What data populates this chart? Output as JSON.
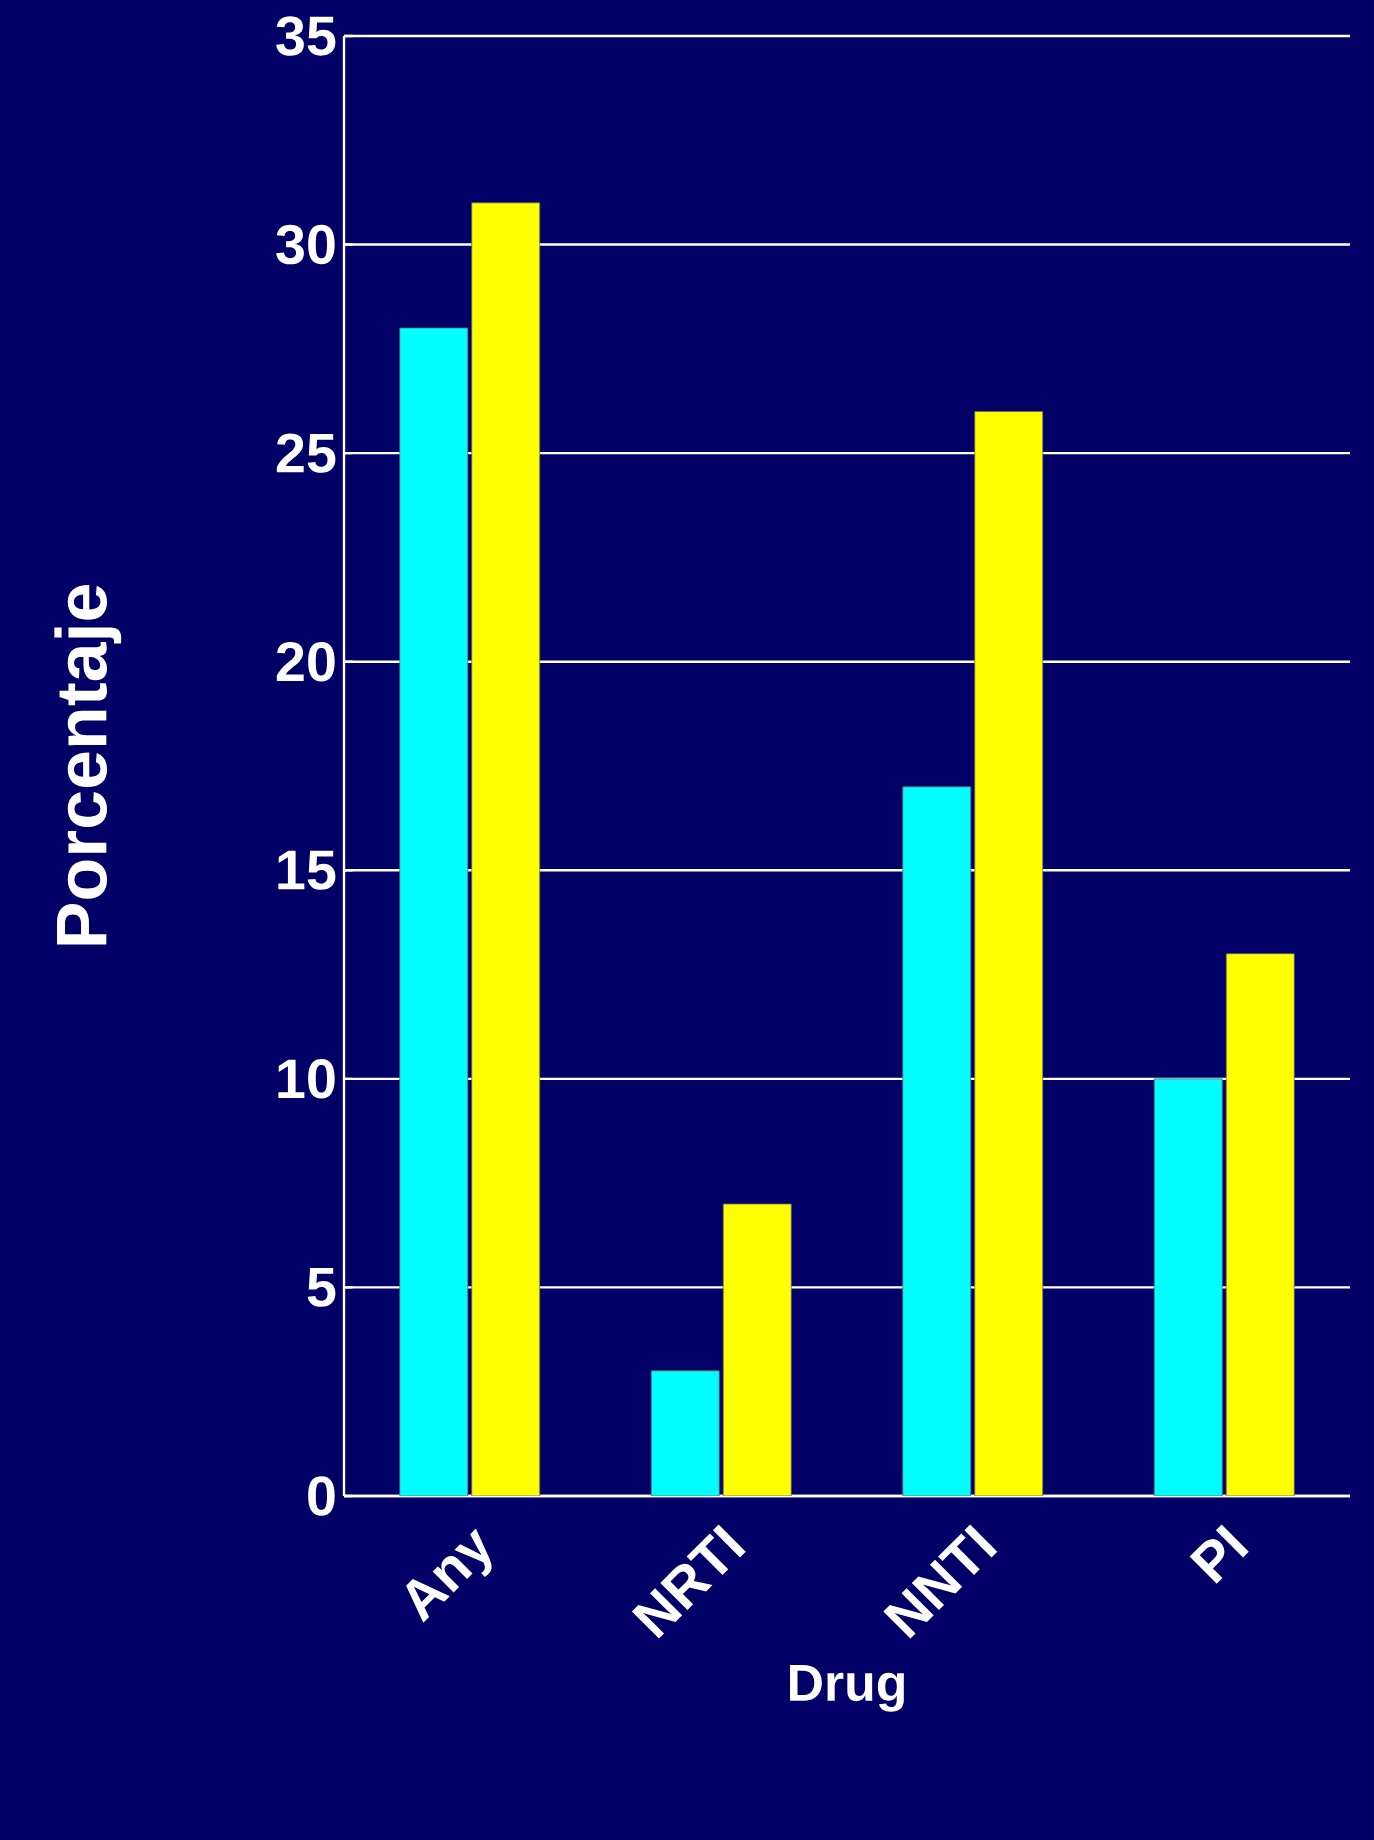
{
  "chart_data": {
    "type": "bar",
    "xlabel": "Drug",
    "ylabel": "Porcentaje",
    "categories": [
      "Any",
      "NRTI",
      "NNTI",
      "PI"
    ],
    "series": [
      {
        "color": "#00ffff",
        "values": [
          28,
          3,
          17,
          10
        ]
      },
      {
        "color": "#ffff00",
        "values": [
          31,
          7,
          26,
          13
        ]
      }
    ],
    "ylim": [
      0,
      35
    ],
    "yticks": [
      0,
      5,
      10,
      15,
      20,
      25,
      30,
      35
    ],
    "grid": "y"
  }
}
